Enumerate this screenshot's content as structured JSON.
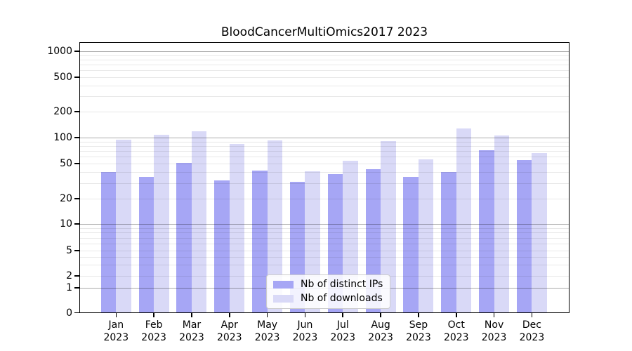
{
  "title": "BloodCancerMultiOmics2017 2023",
  "legend": {
    "items": [
      {
        "label": "Nb of distinct IPs",
        "color": "#a6a6f5"
      },
      {
        "label": "Nb of downloads",
        "color": "#d9d9f7"
      }
    ],
    "position": "lower center"
  },
  "chart_data": {
    "type": "bar",
    "title": "BloodCancerMultiOmics2017 2023",
    "categories": [
      "Jan 2023",
      "Feb 2023",
      "Mar 2023",
      "Apr 2023",
      "May 2023",
      "Jun 2023",
      "Jul 2023",
      "Aug 2023",
      "Sep 2023",
      "Oct 2023",
      "Nov 2023",
      "Dec 2023"
    ],
    "x_tick_line1": [
      "Jan",
      "Feb",
      "Mar",
      "Apr",
      "May",
      "Jun",
      "Jul",
      "Aug",
      "Sep",
      "Oct",
      "Nov",
      "Dec"
    ],
    "x_tick_line2": "2023",
    "series": [
      {
        "name": "Nb of distinct IPs",
        "color": "#a6a6f5",
        "values": [
          40,
          35,
          51,
          32,
          42,
          31,
          38,
          43,
          35,
          40,
          71,
          55
        ]
      },
      {
        "name": "Nb of downloads",
        "color": "#d9d9f7",
        "values": [
          95,
          107,
          118,
          85,
          93,
          41,
          54,
          91,
          56,
          128,
          106,
          66
        ]
      }
    ],
    "xlabel": "",
    "ylabel": "",
    "yscale": "log-like (0,1,2,5,10,20,50,100,200,500,1000)",
    "y_ticks": [
      0,
      1,
      2,
      5,
      10,
      20,
      50,
      100,
      200,
      500,
      1000
    ],
    "ylim": [
      0,
      1280
    ],
    "grid": "on",
    "grid_major_at": [
      1,
      10,
      100,
      1000
    ]
  }
}
